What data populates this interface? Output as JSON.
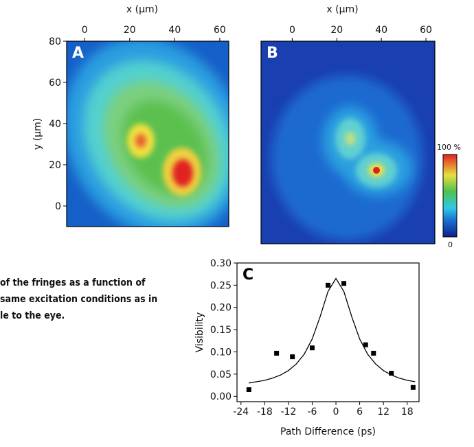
{
  "caption": [
    "of the fringes as a function of",
    "same excitation conditions as in",
    "le to the eye."
  ],
  "chart_data": [
    {
      "type": "heatmap",
      "label": "A",
      "xlabel": "x (µm)",
      "ylabel": "y (µm)",
      "xlim": [
        -8,
        64
      ],
      "xticks": [
        0,
        20,
        40,
        60
      ],
      "ylim": [
        -10,
        80
      ],
      "yticks": [
        0,
        20,
        40,
        60,
        80
      ]
    },
    {
      "type": "heatmap",
      "label": "B",
      "xlabel": "x (µm)",
      "xlim": [
        -14,
        64
      ],
      "xticks": [
        0,
        20,
        40,
        60
      ],
      "ylim": [
        -10,
        80
      ],
      "colorbar": {
        "max_label": "100 %",
        "min_label": "0"
      }
    },
    {
      "type": "scatter",
      "label": "C",
      "xlabel": "Path Difference (ps)",
      "ylabel": "Visibility",
      "xlim": [
        -25,
        21
      ],
      "xticks": [
        -24,
        -18,
        -12,
        -6,
        0,
        6,
        12,
        18
      ],
      "ylim": [
        -0.012,
        0.3
      ],
      "yticks": [
        {
          "value": 0,
          "label": "0.00"
        },
        {
          "value": 0.05,
          "label": "0.05"
        },
        {
          "value": 0.1,
          "label": "0.10"
        },
        {
          "value": 0.15,
          "label": "0.15"
        },
        {
          "value": 0.2,
          "label": "0.20"
        },
        {
          "value": 0.25,
          "label": "0.25"
        },
        {
          "value": 0.3,
          "label": "0.30"
        }
      ],
      "points": {
        "color": "#000000",
        "x": [
          -22,
          -15,
          -11,
          -6,
          -2,
          2,
          7.5,
          9.5,
          14,
          19.5
        ],
        "values": [
          0.015,
          0.097,
          0.089,
          0.109,
          0.25,
          0.254,
          0.116,
          0.097,
          0.052,
          0.02
        ]
      },
      "fit": {
        "color": "#000000",
        "x": [
          -22,
          -20,
          -18,
          -16,
          -14,
          -12,
          -10,
          -8,
          -6,
          -4,
          -2,
          0,
          2,
          4,
          6,
          8,
          10,
          12,
          14,
          16,
          18,
          20
        ],
        "values": [
          0.03,
          0.033,
          0.036,
          0.041,
          0.048,
          0.058,
          0.073,
          0.095,
          0.129,
          0.179,
          0.236,
          0.265,
          0.236,
          0.179,
          0.129,
          0.095,
          0.073,
          0.058,
          0.048,
          0.041,
          0.036,
          0.033
        ]
      }
    }
  ]
}
